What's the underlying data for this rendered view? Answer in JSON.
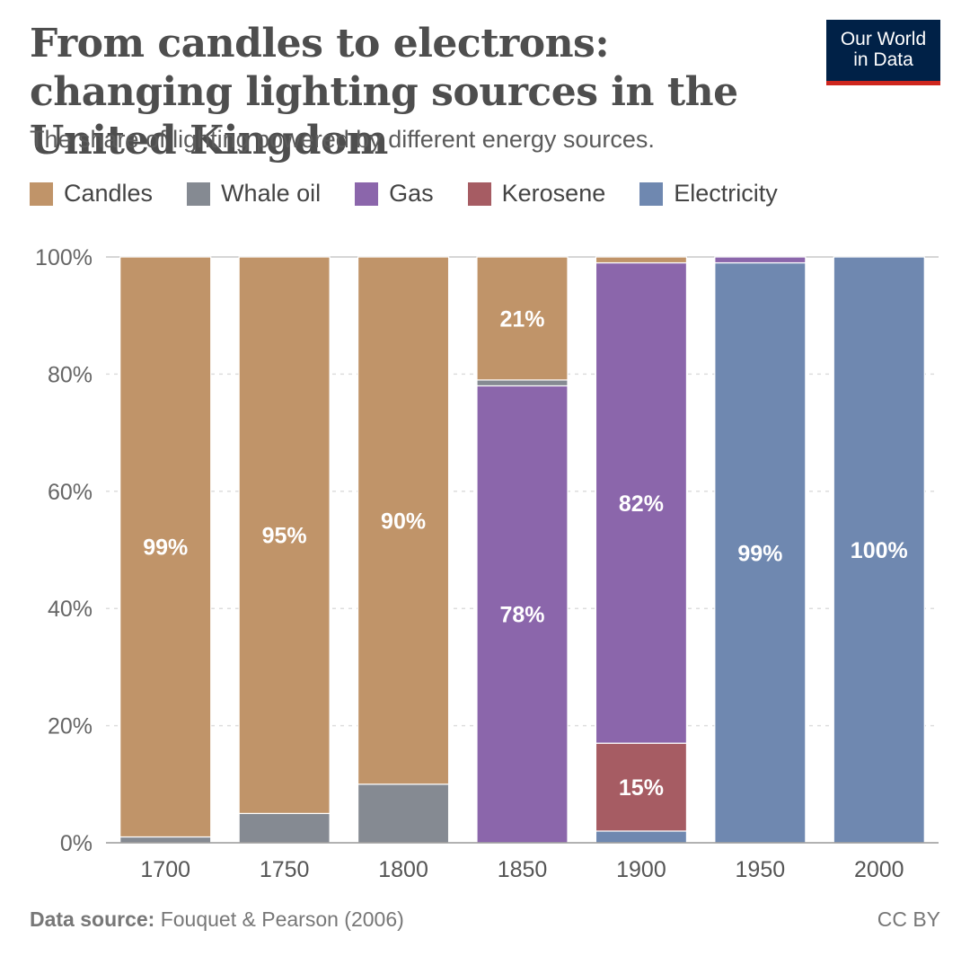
{
  "header": {
    "title": "From candles to electrons: changing lighting sources in the United Kingdom",
    "subtitle": "The share of lighting powered by different energy sources.",
    "logo_line1": "Our World",
    "logo_line2": "in Data"
  },
  "footer": {
    "source_label": "Data source:",
    "source_text": "Fouquet & Pearson (2006)",
    "license": "CC BY"
  },
  "colors": {
    "Candles": "#c09469",
    "Whale oil": "#858a92",
    "Gas": "#8b66ab",
    "Kerosene": "#a65c63",
    "Electricity": "#6f88b0"
  },
  "chart_data": {
    "type": "bar",
    "stacked": true,
    "title": "From candles to electrons: changing lighting sources in the United Kingdom",
    "subtitle": "The share of lighting powered by different energy sources.",
    "categories": [
      "1700",
      "1750",
      "1800",
      "1850",
      "1900",
      "1950",
      "2000"
    ],
    "series": [
      {
        "name": "Electricity",
        "values": [
          0,
          0,
          0,
          0,
          2,
          99,
          100
        ]
      },
      {
        "name": "Kerosene",
        "values": [
          0,
          0,
          0,
          0,
          15,
          0,
          0
        ]
      },
      {
        "name": "Gas",
        "values": [
          0,
          0,
          0,
          78,
          82,
          1,
          0
        ]
      },
      {
        "name": "Whale oil",
        "values": [
          1,
          5,
          10,
          1,
          0,
          0,
          0
        ]
      },
      {
        "name": "Candles",
        "values": [
          99,
          95,
          90,
          21,
          1,
          0,
          0
        ]
      }
    ],
    "data_labels": [
      {
        "category": "1700",
        "series": "Candles",
        "text": "99%"
      },
      {
        "category": "1750",
        "series": "Candles",
        "text": "95%"
      },
      {
        "category": "1800",
        "series": "Candles",
        "text": "90%"
      },
      {
        "category": "1850",
        "series": "Candles",
        "text": "21%"
      },
      {
        "category": "1850",
        "series": "Gas",
        "text": "78%"
      },
      {
        "category": "1900",
        "series": "Gas",
        "text": "82%"
      },
      {
        "category": "1900",
        "series": "Kerosene",
        "text": "15%"
      },
      {
        "category": "1950",
        "series": "Electricity",
        "text": "99%"
      },
      {
        "category": "2000",
        "series": "Electricity",
        "text": "100%"
      }
    ],
    "legend": [
      "Candles",
      "Whale oil",
      "Gas",
      "Kerosene",
      "Electricity"
    ],
    "legend_position": "top-left",
    "yticks": [
      "0%",
      "20%",
      "40%",
      "60%",
      "80%",
      "100%"
    ],
    "ylim": [
      0,
      100
    ],
    "xlabel": "",
    "ylabel": "",
    "grid": true
  }
}
